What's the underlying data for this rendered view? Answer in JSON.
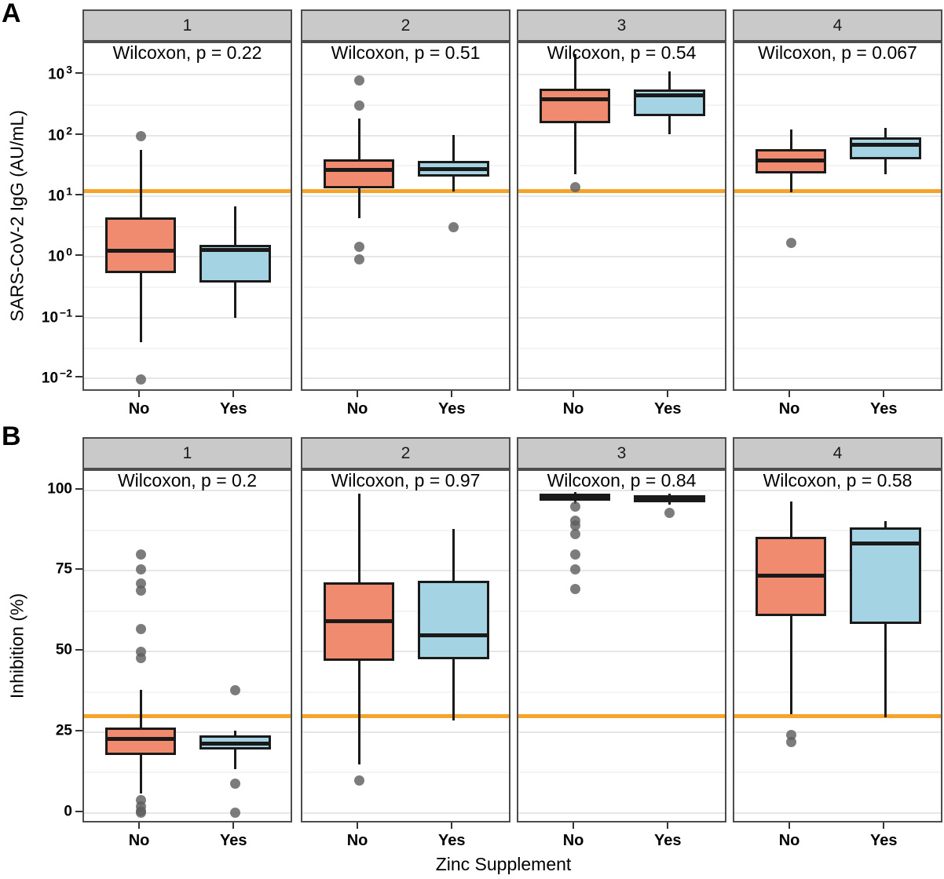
{
  "figure": {
    "row_labels": [
      "A",
      "B"
    ],
    "x_axis_title": "Zinc Supplement",
    "category_labels": [
      "No",
      "Yes"
    ],
    "colors": {
      "no_fill": "#F08B70",
      "yes_fill": "#A4D3E3",
      "reference_line": "#F5A32B",
      "strip_bg": "#C9C9C9",
      "outlier": "#5F5F5F",
      "box_border": "#1A1A1A",
      "panel_border": "#4D4D4D",
      "major_gridline": "#E6E6E6"
    }
  },
  "chart_data": [
    {
      "row": "A",
      "type": "boxplot",
      "scale": "log10",
      "ylabel": "SARS-CoV-2 IgG (AU/mL)",
      "xlabel": "Zinc Supplement",
      "categories": [
        "No",
        "Yes"
      ],
      "legend": "none",
      "grid": "on",
      "ylim_log10": [
        3.52,
        -2.23
      ],
      "yticks": [
        {
          "base": "10",
          "exp": "3",
          "value": 1000
        },
        {
          "base": "10",
          "exp": "2",
          "value": 100
        },
        {
          "base": "10",
          "exp": "1",
          "value": 10
        },
        {
          "base": "10",
          "exp": "0",
          "value": 1
        },
        {
          "base": "10",
          "exp": "−1",
          "value": 0.1
        },
        {
          "base": "10",
          "exp": "−2",
          "value": 0.01
        }
      ],
      "minor_gridlines_log10": [
        2.5,
        1.5,
        0.5,
        -0.5,
        -1.5
      ],
      "reference_line_value": 12,
      "facets": [
        {
          "label": "1",
          "annotation": "Wilcoxon, p = 0.22",
          "boxes": [
            {
              "group": "No",
              "whisker_low": 0.04,
              "q1": 0.55,
              "median": 1.25,
              "q3": 4.5,
              "whisker_high": 58,
              "outliers": [
                97,
                0.0095
              ]
            },
            {
              "group": "Yes",
              "whisker_low": 0.1,
              "q1": 0.38,
              "median": 1.3,
              "q3": 1.6,
              "whisker_high": 6.8,
              "outliers": []
            }
          ]
        },
        {
          "label": "2",
          "annotation": "Wilcoxon, p = 0.51",
          "boxes": [
            {
              "group": "No",
              "whisker_low": 4.3,
              "q1": 13.5,
              "median": 27,
              "q3": 41,
              "whisker_high": 190,
              "outliers": [
                800,
                310,
                1.45,
                0.92
              ]
            },
            {
              "group": "Yes",
              "whisker_low": 12,
              "q1": 21,
              "median": 28,
              "q3": 38,
              "whisker_high": 102,
              "outliers": [
                3.1
              ]
            }
          ]
        },
        {
          "label": "3",
          "annotation": "Wilcoxon, p = 0.54",
          "boxes": [
            {
              "group": "No",
              "whisker_low": 23,
              "q1": 160,
              "median": 400,
              "q3": 590,
              "whisker_high": 2200,
              "outliers": [
                14
              ]
            },
            {
              "group": "Yes",
              "whisker_low": 105,
              "q1": 210,
              "median": 455,
              "q3": 565,
              "whisker_high": 1150,
              "outliers": []
            }
          ]
        },
        {
          "label": "4",
          "annotation": "Wilcoxon, p = 0.067",
          "boxes": [
            {
              "group": "No",
              "whisker_low": 11.5,
              "q1": 24,
              "median": 39,
              "q3": 59,
              "whisker_high": 125,
              "outliers": [
                1.7
              ]
            },
            {
              "group": "Yes",
              "whisker_low": 23,
              "q1": 40,
              "median": 71,
              "q3": 93,
              "whisker_high": 135,
              "outliers": []
            }
          ]
        }
      ]
    },
    {
      "row": "B",
      "type": "boxplot",
      "scale": "linear",
      "ylabel": "Inhibition (%)",
      "xlabel": "Zinc Supplement",
      "categories": [
        "No",
        "Yes"
      ],
      "legend": "none",
      "grid": "on",
      "ylim": [
        106,
        -3.5
      ],
      "yticks": [
        {
          "label": "100",
          "value": 100
        },
        {
          "label": "75",
          "value": 75
        },
        {
          "label": "50",
          "value": 50
        },
        {
          "label": "25",
          "value": 25
        },
        {
          "label": "0",
          "value": 0
        }
      ],
      "minor_gridlines": [
        87.5,
        62.5,
        37.5,
        12.5
      ],
      "reference_line_value": 30,
      "facets": [
        {
          "label": "1",
          "annotation": "Wilcoxon, p = 0.2",
          "boxes": [
            {
              "group": "No",
              "whisker_low": 6,
              "q1": 18,
              "median": 23,
              "q3": 26.5,
              "whisker_high": 38,
              "outliers": [
                80,
                75.5,
                71,
                69,
                57,
                50,
                48,
                4,
                2,
                0.5,
                0
              ]
            },
            {
              "group": "Yes",
              "whisker_low": 13.5,
              "q1": 19.5,
              "median": 21.5,
              "q3": 24,
              "whisker_high": 25.5,
              "outliers": [
                38,
                9,
                0
              ]
            }
          ]
        },
        {
          "label": "2",
          "annotation": "Wilcoxon, p = 0.97",
          "boxes": [
            {
              "group": "No",
              "whisker_low": 15,
              "q1": 47,
              "median": 59.5,
              "q3": 71.5,
              "whisker_high": 99,
              "outliers": [
                10
              ]
            },
            {
              "group": "Yes",
              "whisker_low": 28.5,
              "q1": 47.5,
              "median": 55,
              "q3": 72,
              "whisker_high": 88,
              "outliers": []
            }
          ]
        },
        {
          "label": "3",
          "annotation": "Wilcoxon, p = 0.84",
          "boxes": [
            {
              "group": "No",
              "whisker_low": 95.8,
              "q1": 96.8,
              "median": 98,
              "q3": 99,
              "whisker_high": 99.4,
              "outliers": [
                95,
                90.5,
                89,
                86.5,
                80,
                75.5,
                69.5
              ]
            },
            {
              "group": "Yes",
              "whisker_low": 95.5,
              "q1": 96.3,
              "median": 97.5,
              "q3": 98.4,
              "whisker_high": 99,
              "outliers": [
                93
              ]
            }
          ]
        },
        {
          "label": "4",
          "annotation": "Wilcoxon, p = 0.58",
          "boxes": [
            {
              "group": "No",
              "whisker_low": 30.5,
              "q1": 61,
              "median": 73.5,
              "q3": 85.5,
              "whisker_high": 96.5,
              "outliers": [
                24,
                22
              ]
            },
            {
              "group": "Yes",
              "whisker_low": 29.5,
              "q1": 58.5,
              "median": 83.5,
              "q3": 88.5,
              "whisker_high": 90.5,
              "outliers": []
            }
          ]
        }
      ]
    }
  ]
}
